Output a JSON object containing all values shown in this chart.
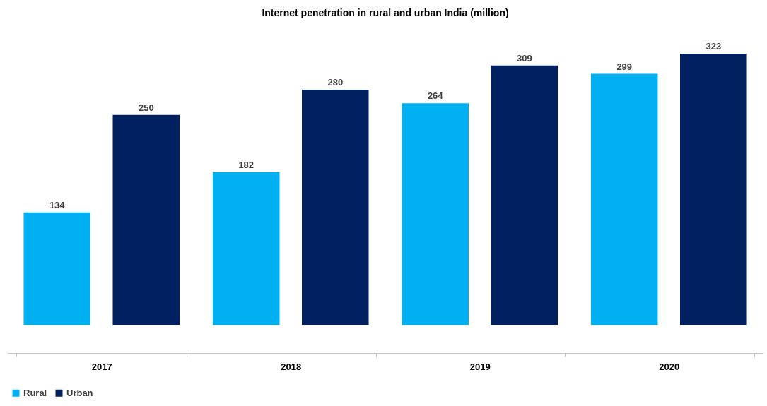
{
  "chart_data": {
    "type": "bar",
    "title": "Internet penetration in rural and urban India (million)",
    "categories": [
      "2017",
      "2018",
      "2019",
      "2020"
    ],
    "series": [
      {
        "name": "Rural",
        "color": "#00b0f0",
        "values": [
          134,
          182,
          264,
          299
        ]
      },
      {
        "name": "Urban",
        "color": "#002060",
        "values": [
          250,
          280,
          309,
          323
        ]
      }
    ],
    "data_labels": true,
    "legend": "bottom",
    "grid": false
  }
}
